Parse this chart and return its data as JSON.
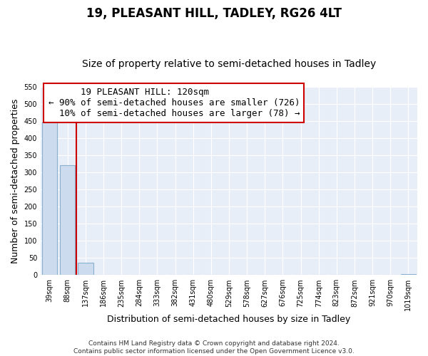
{
  "title": "19, PLEASANT HILL, TADLEY, RG26 4LT",
  "subtitle": "Size of property relative to semi-detached houses in Tadley",
  "xlabel": "Distribution of semi-detached houses by size in Tadley",
  "ylabel": "Number of semi-detached properties",
  "bar_labels": [
    "39sqm",
    "88sqm",
    "137sqm",
    "186sqm",
    "235sqm",
    "284sqm",
    "333sqm",
    "382sqm",
    "431sqm",
    "480sqm",
    "529sqm",
    "578sqm",
    "627sqm",
    "676sqm",
    "725sqm",
    "774sqm",
    "823sqm",
    "872sqm",
    "921sqm",
    "970sqm",
    "1019sqm"
  ],
  "bar_values": [
    447,
    320,
    35,
    0,
    0,
    0,
    0,
    0,
    0,
    0,
    0,
    0,
    0,
    0,
    0,
    0,
    0,
    0,
    0,
    0,
    2
  ],
  "bar_color": "#ccdcee",
  "bar_edge_color": "#8ab0d0",
  "ylim": [
    0,
    550
  ],
  "yticks": [
    0,
    50,
    100,
    150,
    200,
    250,
    300,
    350,
    400,
    450,
    500,
    550
  ],
  "property_line_color": "#cc0000",
  "annotation_title": "19 PLEASANT HILL: 120sqm",
  "annotation_line1": "← 90% of semi-detached houses are smaller (726)",
  "annotation_line2": "10% of semi-detached houses are larger (78) →",
  "annotation_box_color": "#cc0000",
  "footer_line1": "Contains HM Land Registry data © Crown copyright and database right 2024.",
  "footer_line2": "Contains public sector information licensed under the Open Government Licence v3.0.",
  "background_color": "#e8eef8",
  "grid_color": "#ffffff",
  "title_fontsize": 12,
  "subtitle_fontsize": 10,
  "axis_label_fontsize": 9,
  "tick_fontsize": 7,
  "annotation_fontsize": 9,
  "footer_fontsize": 6.5
}
